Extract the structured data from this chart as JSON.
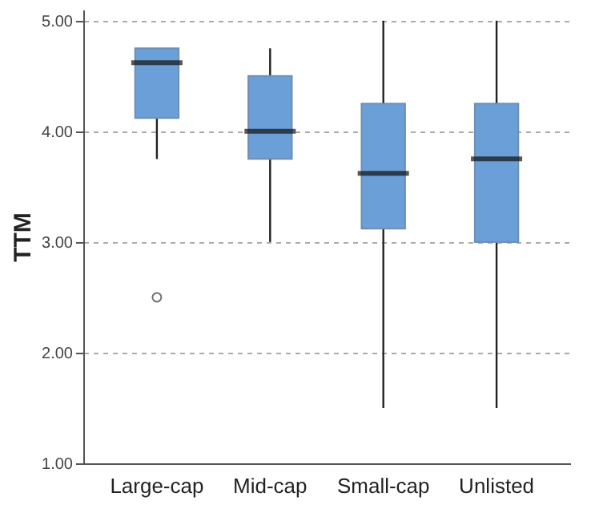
{
  "chart_data": {
    "type": "box",
    "ylabel": "TTM",
    "categories": [
      "Large-cap",
      "Mid-cap",
      "Small-cap",
      "Unlisted"
    ],
    "boxes": [
      {
        "low": 3.75,
        "q1": 4.12,
        "median": 4.62,
        "q3": 4.75,
        "high": 4.75,
        "outliers": [
          2.5
        ]
      },
      {
        "low": 3.0,
        "q1": 3.75,
        "median": 4.0,
        "q3": 4.5,
        "high": 4.75
      },
      {
        "low": 1.5,
        "q1": 3.12,
        "median": 3.62,
        "q3": 4.25,
        "high": 5.0
      },
      {
        "low": 1.5,
        "q1": 3.0,
        "median": 3.75,
        "q3": 4.25,
        "high": 5.0
      }
    ],
    "color": "#6a9fd8",
    "ylim": [
      1,
      5.1
    ],
    "yticks": [
      {
        "value": 1,
        "label": "1.00"
      },
      {
        "value": 2,
        "label": "2.00"
      },
      {
        "value": 3,
        "label": "3.00"
      },
      {
        "value": 4,
        "label": "4.00"
      },
      {
        "value": 5,
        "label": "5.00"
      }
    ],
    "grid": "y"
  }
}
